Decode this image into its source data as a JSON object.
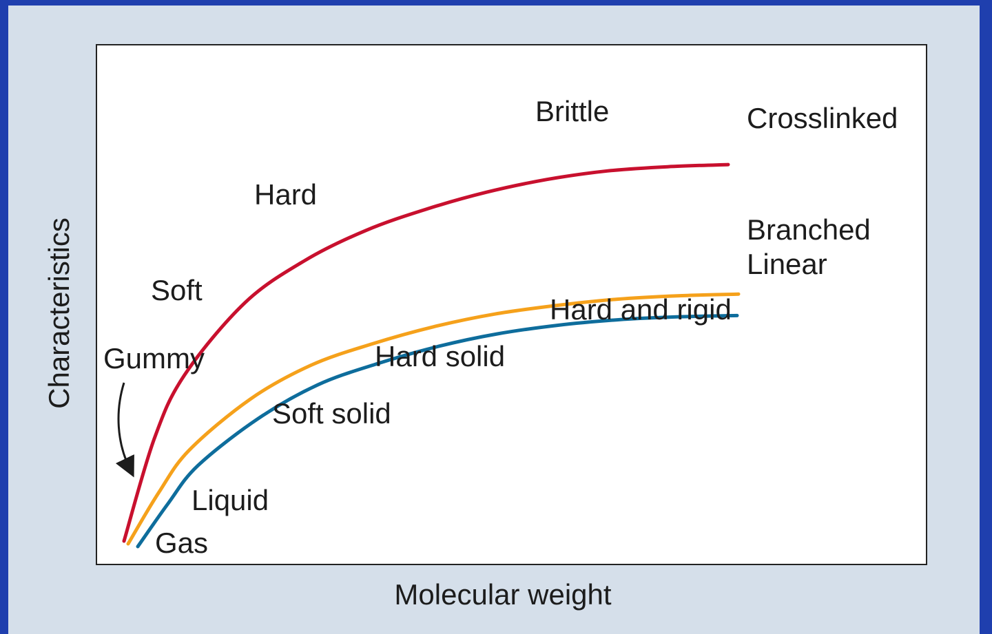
{
  "chart_data": {
    "type": "line",
    "xlabel": "Molecular weight",
    "ylabel": "Characteristics",
    "grid": false,
    "legend": "end-of-line labels",
    "series": [
      {
        "name": "Crosslinked",
        "color": "#c8102e",
        "x": [
          0,
          5,
          10,
          20,
          30,
          40,
          50,
          60,
          70,
          80,
          90,
          100
        ],
        "y": [
          0,
          24,
          39,
          56,
          66,
          73,
          78,
          82,
          85,
          87,
          88,
          88.5
        ]
      },
      {
        "name": "Branched",
        "color": "#f5a11b",
        "x": [
          0,
          5,
          10,
          20,
          30,
          40,
          50,
          60,
          70,
          80,
          90,
          100
        ],
        "y": [
          0,
          12,
          22,
          34,
          42,
          47,
          51,
          54,
          56,
          57.5,
          58.3,
          58.7
        ]
      },
      {
        "name": "Linear",
        "color": "#0e6d9c",
        "x": [
          0,
          5,
          10,
          20,
          30,
          40,
          50,
          60,
          70,
          80,
          90,
          100
        ],
        "y": [
          0,
          10,
          19,
          30,
          38,
          43,
          47,
          50,
          52,
          53.3,
          54,
          54.3
        ]
      }
    ],
    "annotations": [
      {
        "text": "Brittle"
      },
      {
        "text": "Hard"
      },
      {
        "text": "Soft"
      },
      {
        "text": "Gummy"
      },
      {
        "text": "Hard and rigid"
      },
      {
        "text": "Hard solid"
      },
      {
        "text": "Soft solid"
      },
      {
        "text": "Liquid"
      },
      {
        "text": "Gas"
      }
    ]
  }
}
